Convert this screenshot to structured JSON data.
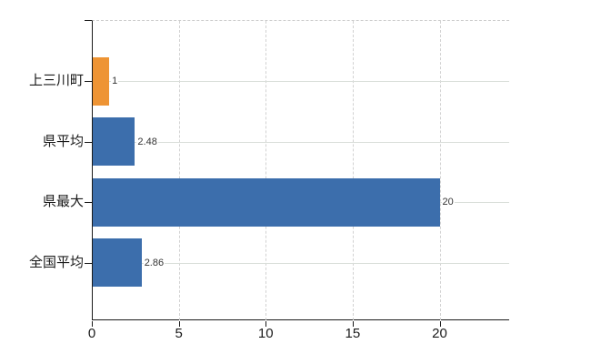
{
  "chart_data": {
    "type": "bar",
    "orientation": "horizontal",
    "title": "",
    "xlabel": "",
    "ylabel": "",
    "categories": [
      "上三川町",
      "県平均",
      "県最大",
      "全国平均"
    ],
    "values": [
      1,
      2.48,
      20,
      2.86
    ],
    "data_labels": [
      "1",
      "2.48",
      "20",
      "2.86"
    ],
    "bar_colors": [
      "#ee9434",
      "#3c6eac",
      "#3c6eac",
      "#3c6eac"
    ],
    "xlim": [
      0,
      24
    ],
    "x_ticks": [
      0,
      5,
      10,
      15,
      20
    ],
    "x_tick_labels": [
      "0",
      "5",
      "10",
      "15",
      "20"
    ],
    "grid": true,
    "legend": false,
    "colors": {
      "axis": "#1a1a1a",
      "vertical_gridline": "#d2d2d2",
      "category_gridline": "#d9ded9",
      "top_border": "#cccccc",
      "value_label_text": "#333333",
      "tick_label_text": "#1a1a1a"
    }
  }
}
